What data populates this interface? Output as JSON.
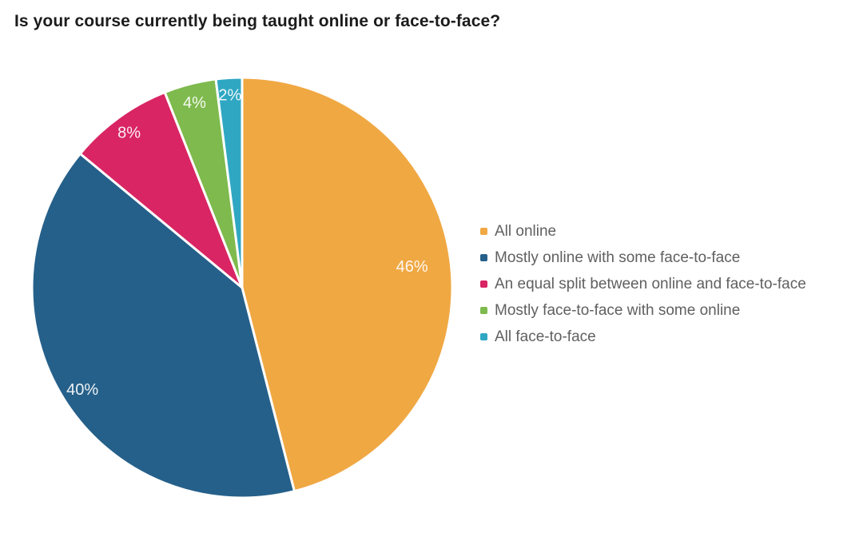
{
  "title": "Is your course currently being taught online or face-to-face?",
  "chart_data": {
    "type": "pie",
    "title": "Is your course currently being taught online or face-to-face?",
    "categories": [
      "All online",
      "Mostly online with some face-to-face",
      "An equal split between online and face-to-face",
      "Mostly face-to-face with some online",
      "All face-to-face"
    ],
    "values": [
      46,
      40,
      8,
      4,
      2
    ],
    "data_labels": [
      "46%",
      "40%",
      "8%",
      "4%",
      "2%"
    ],
    "unit": "%",
    "colors": [
      "#F0A843",
      "#25608A",
      "#D92563",
      "#7EBA4D",
      "#2FA7C3"
    ],
    "slice_border_color": "#ffffff",
    "data_label_color": "#ffffff",
    "legend_position": "right",
    "legend_text_color": "#606060",
    "start_angle_deg": 0,
    "direction": "clockwise",
    "background_color": "#ffffff"
  }
}
